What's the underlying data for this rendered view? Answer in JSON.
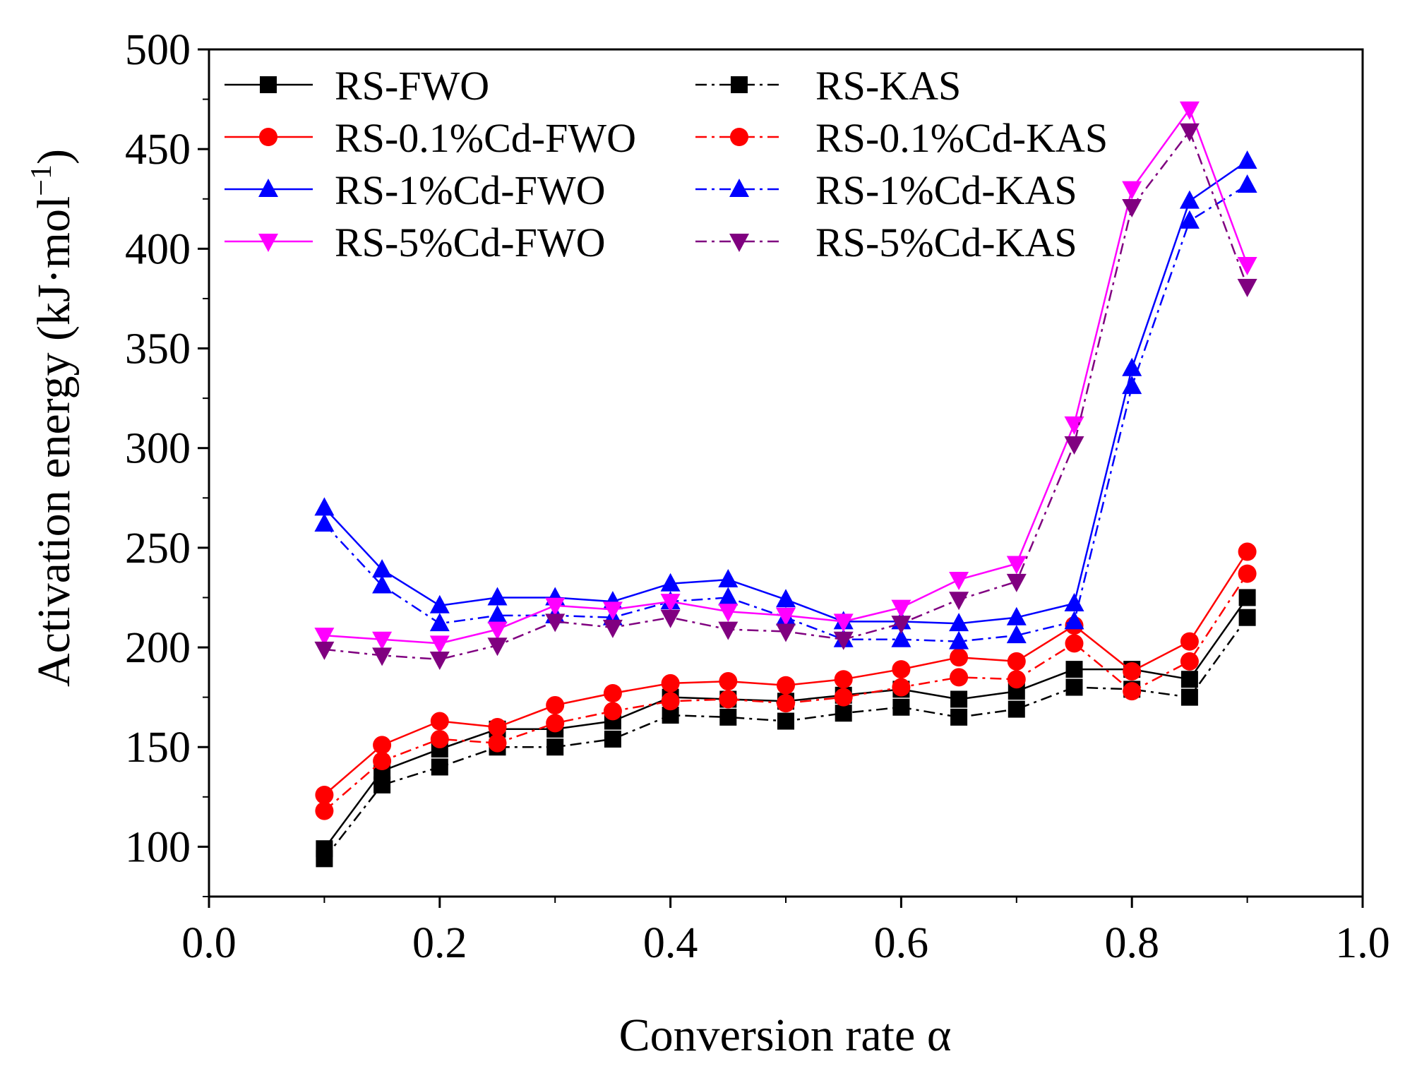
{
  "chart_data": {
    "type": "line",
    "title": "",
    "xlabel": "Conversion rate α",
    "ylabel_main": "Activation energy (kJ·mol",
    "ylabel_sup": "−1",
    "ylabel_close": ")",
    "xlim": [
      0.0,
      1.0
    ],
    "ylim": [
      75,
      500
    ],
    "xticks": [
      0.0,
      0.2,
      0.4,
      0.6,
      0.8,
      1.0
    ],
    "xtick_labels": [
      "0.0",
      "0.2",
      "0.4",
      "0.6",
      "0.8",
      "1.0"
    ],
    "yticks": [
      100,
      150,
      200,
      250,
      300,
      350,
      400,
      450,
      500
    ],
    "ytick_labels": [
      "100",
      "150",
      "200",
      "250",
      "300",
      "350",
      "400",
      "450",
      "500"
    ],
    "grid": false,
    "legend_position": "top-left",
    "x": [
      0.1,
      0.15,
      0.2,
      0.25,
      0.3,
      0.35,
      0.4,
      0.45,
      0.5,
      0.55,
      0.6,
      0.65,
      0.7,
      0.75,
      0.8,
      0.85,
      0.9
    ],
    "series": [
      {
        "name": "RS-FWO",
        "color": "#000000",
        "style": "solid",
        "marker": "square",
        "values": [
          99,
          138,
          149,
          159,
          159,
          163,
          175,
          174,
          173,
          176,
          179,
          174,
          178,
          189,
          189,
          184,
          225
        ]
      },
      {
        "name": "RS-KAS",
        "color": "#000000",
        "style": "dashdot",
        "marker": "square",
        "values": [
          94,
          131,
          140,
          150,
          150,
          154,
          166,
          165,
          163,
          167,
          170,
          165,
          169,
          180,
          179,
          175,
          215
        ]
      },
      {
        "name": "RS-0.1%Cd-FWO",
        "color": "#ff0000",
        "style": "solid",
        "marker": "circle",
        "values": [
          126,
          151,
          163,
          160,
          171,
          177,
          182,
          183,
          181,
          184,
          189,
          195,
          193,
          211,
          188,
          203,
          248
        ]
      },
      {
        "name": "RS-0.1%Cd-KAS",
        "color": "#ff0000",
        "style": "dashdot",
        "marker": "circle",
        "values": [
          118,
          143,
          154,
          152,
          162,
          168,
          173,
          174,
          172,
          175,
          180,
          185,
          184,
          202,
          178,
          193,
          237
        ]
      },
      {
        "name": "RS-1%Cd-FWO",
        "color": "#0000ff",
        "style": "solid",
        "marker": "triangle-up",
        "values": [
          270,
          239,
          221,
          225,
          225,
          223,
          232,
          234,
          224,
          213,
          213,
          212,
          215,
          222,
          340,
          424,
          444
        ]
      },
      {
        "name": "RS-1%Cd-KAS",
        "color": "#0000ff",
        "style": "dashdot",
        "marker": "triangle-up",
        "values": [
          262,
          231,
          212,
          216,
          216,
          215,
          223,
          225,
          215,
          204,
          204,
          203,
          206,
          213,
          331,
          414,
          432
        ]
      },
      {
        "name": "RS-5%Cd-FWO",
        "color": "#ff00ff",
        "style": "solid",
        "marker": "triangle-down",
        "values": [
          206,
          204,
          202,
          209,
          221,
          219,
          223,
          218,
          216,
          213,
          220,
          234,
          242,
          312,
          430,
          470,
          392
        ]
      },
      {
        "name": "RS-5%Cd-KAS",
        "color": "#800080",
        "style": "dashdot",
        "marker": "triangle-down",
        "values": [
          199,
          196,
          194,
          201,
          213,
          210,
          215,
          209,
          208,
          204,
          212,
          224,
          233,
          302,
          421,
          459,
          381
        ]
      }
    ]
  }
}
